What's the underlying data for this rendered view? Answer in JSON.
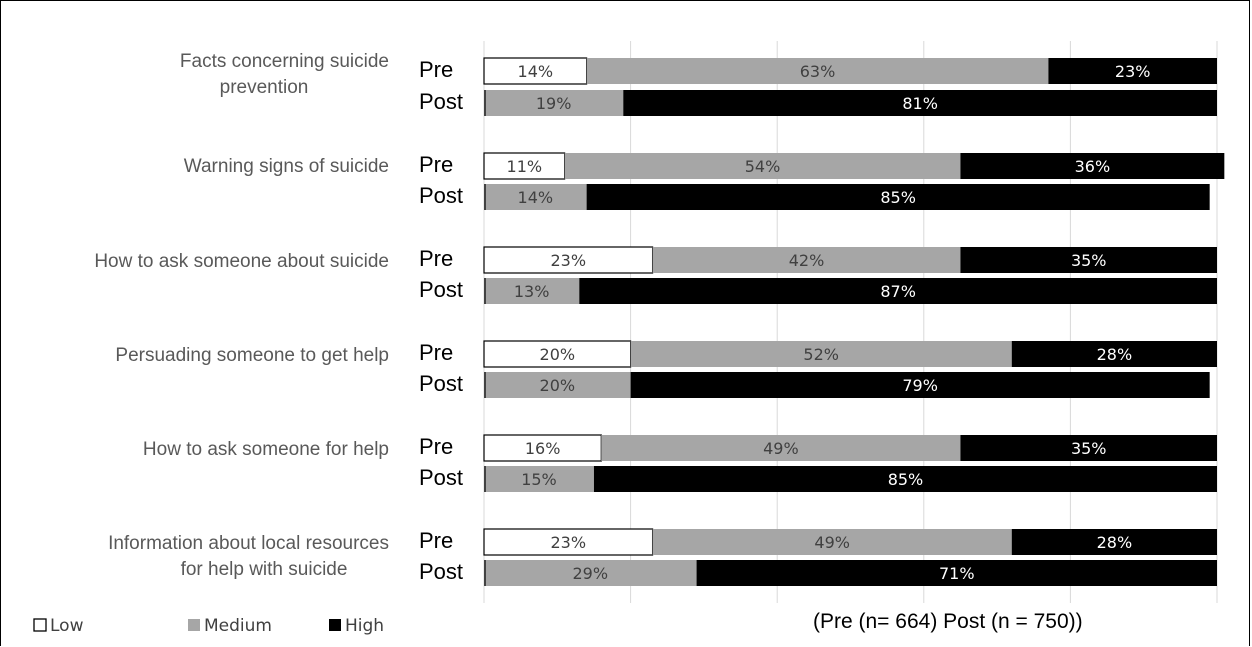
{
  "chart_data": {
    "type": "bar",
    "orientation": "horizontal",
    "stacked": true,
    "xlim": [
      0,
      100
    ],
    "grid": true,
    "legend_placement": "bottom-left",
    "categories": [
      "Facts concerning suicide prevention",
      "Warning signs of suicide",
      "How to ask someone about suicide",
      "Persuading someone to get help",
      "How to ask someone for help",
      "Information about local resources for help with suicide"
    ],
    "category_lines": [
      [
        "Facts concerning suicide",
        "prevention"
      ],
      [
        "Warning signs of suicide"
      ],
      [
        "How to ask someone about suicide"
      ],
      [
        "Persuading someone to get help"
      ],
      [
        "How to ask someone for help"
      ],
      [
        "Information about local resources",
        "for help with suicide"
      ]
    ],
    "groups": [
      "Pre",
      "Post"
    ],
    "series": [
      {
        "name": "Low",
        "color": "#ffffff",
        "pre": [
          14,
          11,
          23,
          20,
          16,
          23
        ],
        "post": [
          0,
          0,
          0,
          0,
          0,
          0
        ]
      },
      {
        "name": "Medium",
        "color": "#a6a6a6",
        "pre": [
          63,
          54,
          42,
          52,
          49,
          49
        ],
        "post": [
          19,
          14,
          13,
          20,
          15,
          29
        ]
      },
      {
        "name": "High",
        "color": "#000000",
        "pre": [
          23,
          36,
          35,
          28,
          35,
          28
        ],
        "post": [
          81,
          85,
          87,
          79,
          85,
          71
        ]
      }
    ],
    "labels": {
      "pre": [
        [
          "14%",
          "63%",
          "23%"
        ],
        [
          "11%",
          "54%",
          "36%"
        ],
        [
          "23%",
          "42%",
          "35%"
        ],
        [
          "20%",
          "52%",
          "28%"
        ],
        [
          "16%",
          "49%",
          "35%"
        ],
        [
          "23%",
          "49%",
          "28%"
        ]
      ],
      "post": [
        [
          "",
          "19%",
          "81%"
        ],
        [
          "",
          "14%",
          "85%"
        ],
        [
          "",
          "13%",
          "87%"
        ],
        [
          "",
          "20%",
          "79%"
        ],
        [
          "",
          "15%",
          "85%"
        ],
        [
          "",
          "29%",
          "71%"
        ]
      ]
    },
    "annotation": "(Pre (n= 664) Post (n = 750))"
  }
}
